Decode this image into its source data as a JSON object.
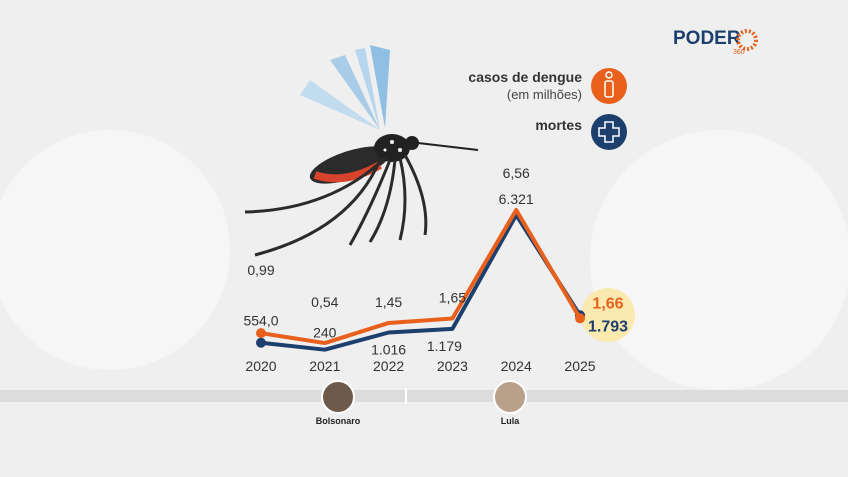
{
  "brand": {
    "name": "PODER",
    "sub": "360"
  },
  "legend": {
    "cases_line1": "casos de dengue",
    "cases_line2": "(em milhões)",
    "deaths": "mortes"
  },
  "timeline": {
    "left": "Bolsonaro",
    "right": "Lula"
  },
  "chart_data": {
    "type": "line",
    "categories": [
      "2020",
      "2021",
      "2022",
      "2023",
      "2024",
      "2025"
    ],
    "series": [
      {
        "name": "casos de dengue (em milhões)",
        "color": "#e8601c",
        "values": [
          0.99,
          0.54,
          1.45,
          1.65,
          6.56,
          1.66
        ],
        "value_labels": [
          "0,99",
          "0,54",
          "1,45",
          "1,65",
          "6,56",
          "1,66"
        ]
      },
      {
        "name": "mortes",
        "color": "#1c3f6e",
        "axis": "y2",
        "values": [
          554,
          240,
          1016,
          1179,
          6321,
          1793
        ],
        "value_labels": [
          "554,0",
          "240",
          "1.016",
          "1.179",
          "6.321",
          "1.793"
        ]
      }
    ]
  }
}
